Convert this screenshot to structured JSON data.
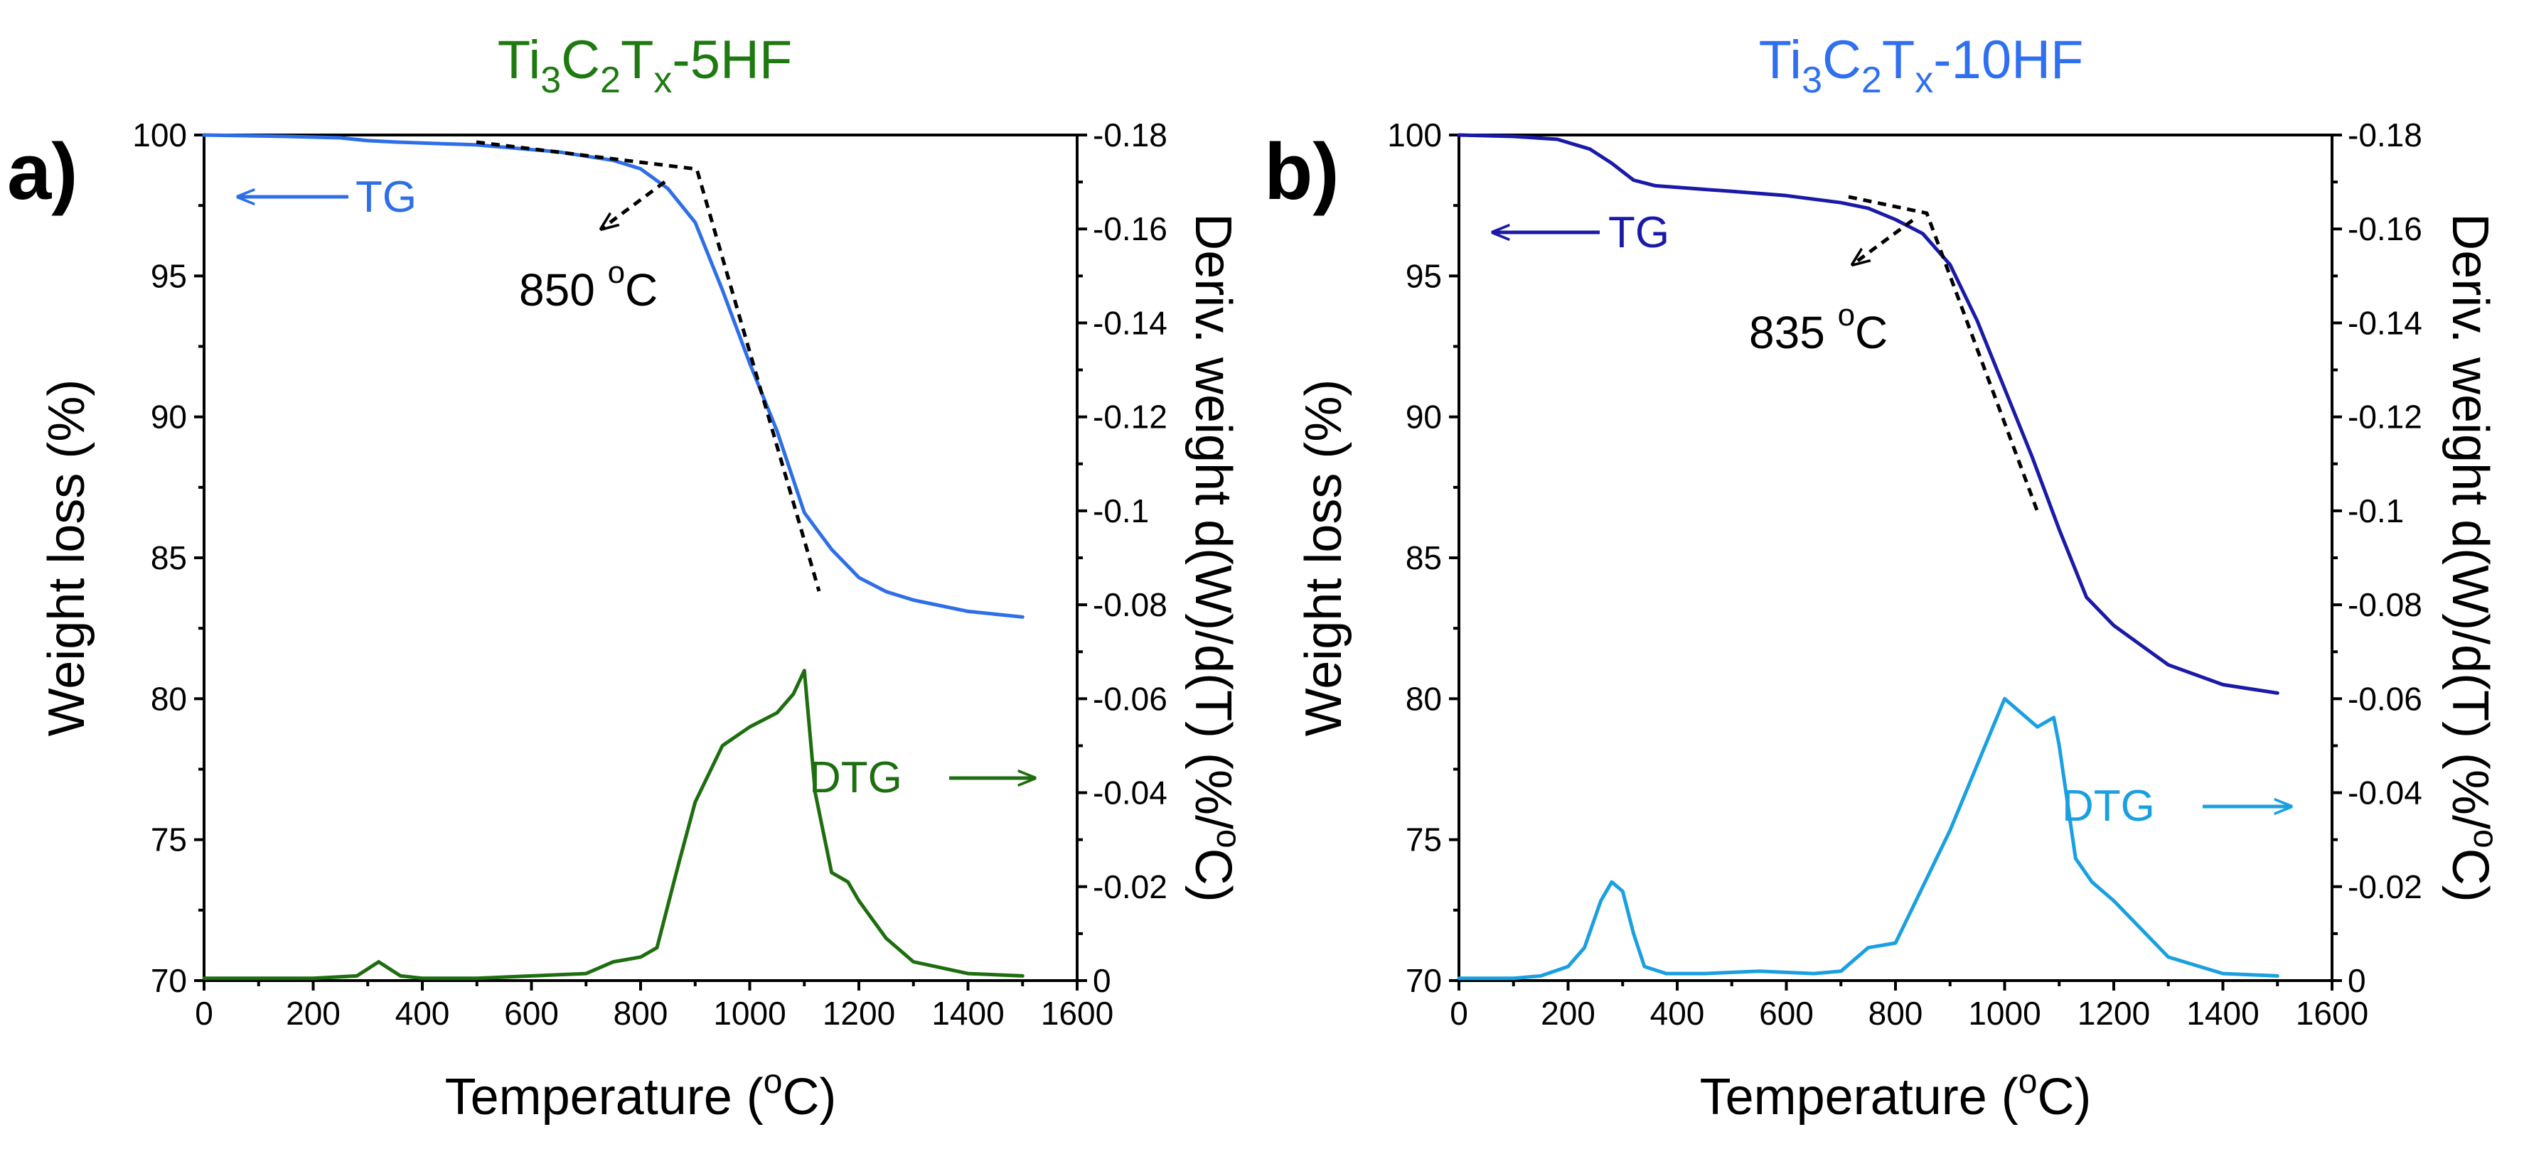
{
  "figure": {
    "x_axis_title": "Temperature (°C)",
    "x_axis_title_parts": [
      "Temperature (",
      "o",
      "C)"
    ],
    "left_axis_title": "Weight loss (%)",
    "right_axis_title": "Deriv. weight d(W)/d(T)  (%/°C)",
    "right_axis_title_parts": [
      "Deriv. weight d(W)/d(T)  (%/",
      "o",
      "C)"
    ]
  },
  "colors": {
    "panel_a_title": "#1e7a10",
    "panel_a_tg": "#2e6fe8",
    "panel_a_dtg": "#1e6e10",
    "panel_b_title": "#2f6ff0",
    "panel_b_tg": "#1a1aa8",
    "panel_b_dtg": "#1aa0e0",
    "axes": "#000000"
  },
  "chart_data": [
    {
      "type": "line",
      "panel_label": "a)",
      "title": "Ti3C2Tx-5HF",
      "title_parts": [
        "Ti",
        "3",
        "C",
        "2",
        "T",
        "x",
        "-5HF"
      ],
      "xlabel": "Temperature (°C)",
      "ylabel": "Weight loss (%)",
      "y2label": "Deriv. weight d(W)/d(T)  (%/°C)",
      "xlim": [
        0,
        1600
      ],
      "ylim": [
        70,
        100
      ],
      "y2lim": [
        0,
        -0.18
      ],
      "xticks": [
        0,
        200,
        400,
        600,
        800,
        1000,
        1200,
        1400,
        1600
      ],
      "yticks": [
        70,
        75,
        80,
        85,
        90,
        95,
        100
      ],
      "y2ticks": [
        0,
        -0.02,
        -0.04,
        -0.06,
        -0.08,
        -0.1,
        -0.12,
        -0.14,
        -0.16,
        -0.18
      ],
      "xtick_labels": [
        "0",
        "200",
        "400",
        "600",
        "800",
        "1000",
        "1200",
        "1400",
        "1600"
      ],
      "ytick_labels": [
        "70",
        "75",
        "80",
        "85",
        "90",
        "95",
        "100"
      ],
      "y2tick_labels": [
        "0",
        "-0.02",
        "-0.04",
        "-0.06",
        "-0.08",
        "-0.1",
        "-0.12",
        "-0.14",
        "-0.16",
        "-0.18"
      ],
      "series": [
        {
          "name": "TG",
          "axis": "left",
          "x": [
            0,
            150,
            250,
            300,
            350,
            500,
            650,
            750,
            800,
            850,
            900,
            950,
            1000,
            1050,
            1100,
            1150,
            1200,
            1250,
            1300,
            1400,
            1500
          ],
          "values": [
            100,
            99.95,
            99.9,
            99.8,
            99.75,
            99.65,
            99.4,
            99.1,
            98.8,
            98.1,
            96.9,
            94.5,
            91.9,
            89.5,
            86.6,
            85.3,
            84.3,
            83.8,
            83.5,
            83.1,
            82.9
          ]
        },
        {
          "name": "DTG",
          "axis": "right",
          "x": [
            0,
            100,
            200,
            280,
            320,
            360,
            400,
            500,
            600,
            700,
            750,
            800,
            830,
            870,
            900,
            950,
            1000,
            1050,
            1080,
            1100,
            1120,
            1150,
            1180,
            1200,
            1250,
            1300,
            1400,
            1500
          ],
          "values": [
            -0.0005,
            -0.0005,
            -0.0005,
            -0.001,
            -0.004,
            -0.001,
            -0.0005,
            -0.0005,
            -0.001,
            -0.0015,
            -0.004,
            -0.005,
            -0.007,
            -0.025,
            -0.038,
            -0.05,
            -0.054,
            -0.057,
            -0.061,
            -0.066,
            -0.04,
            -0.023,
            -0.021,
            -0.017,
            -0.009,
            -0.004,
            -0.0015,
            -0.001
          ]
        }
      ],
      "annotations": {
        "onset": "850 °C",
        "onset_parts": [
          "850 ",
          "o",
          "C"
        ],
        "tg_label": "TG",
        "dtg_label": "DTG"
      }
    },
    {
      "type": "line",
      "panel_label": "b)",
      "title": "Ti3C2Tx-10HF",
      "title_parts": [
        "Ti",
        "3",
        "C",
        "2",
        "T",
        "x",
        "-10HF"
      ],
      "xlabel": "Temperature (°C)",
      "ylabel": "Weight loss (%)",
      "y2label": "Deriv. weight d(W)/d(T)  (%/°C)",
      "xlim": [
        0,
        1600
      ],
      "ylim": [
        70,
        100
      ],
      "y2lim": [
        0,
        -0.18
      ],
      "xticks": [
        0,
        200,
        400,
        600,
        800,
        1000,
        1200,
        1400,
        1600
      ],
      "yticks": [
        70,
        75,
        80,
        85,
        90,
        95,
        100
      ],
      "y2ticks": [
        0,
        -0.02,
        -0.04,
        -0.06,
        -0.08,
        -0.1,
        -0.12,
        -0.14,
        -0.16,
        -0.18
      ],
      "xtick_labels": [
        "0",
        "200",
        "400",
        "600",
        "800",
        "1000",
        "1200",
        "1400",
        "1600"
      ],
      "ytick_labels": [
        "70",
        "75",
        "80",
        "85",
        "90",
        "95",
        "100"
      ],
      "y2tick_labels": [
        "0",
        "-0.02",
        "-0.04",
        "-0.06",
        "-0.08",
        "-0.1",
        "-0.12",
        "-0.14",
        "-0.16",
        "-0.18"
      ],
      "series": [
        {
          "name": "TG",
          "axis": "left",
          "x": [
            0,
            100,
            180,
            240,
            280,
            320,
            360,
            500,
            600,
            700,
            750,
            800,
            850,
            900,
            950,
            1000,
            1050,
            1100,
            1150,
            1200,
            1250,
            1300,
            1400,
            1500
          ],
          "values": [
            100,
            99.95,
            99.85,
            99.5,
            99.0,
            98.4,
            98.2,
            98.0,
            97.85,
            97.6,
            97.4,
            97.0,
            96.5,
            95.4,
            93.4,
            91.0,
            88.6,
            86.0,
            83.6,
            82.6,
            81.9,
            81.2,
            80.5,
            80.2
          ]
        },
        {
          "name": "DTG",
          "axis": "right",
          "x": [
            0,
            100,
            150,
            200,
            230,
            260,
            280,
            300,
            320,
            340,
            380,
            450,
            550,
            650,
            700,
            750,
            800,
            850,
            900,
            950,
            1000,
            1030,
            1060,
            1090,
            1100,
            1130,
            1160,
            1200,
            1250,
            1300,
            1400,
            1500
          ],
          "values": [
            -0.0005,
            -0.0005,
            -0.001,
            -0.003,
            -0.007,
            -0.017,
            -0.021,
            -0.019,
            -0.01,
            -0.003,
            -0.0015,
            -0.0015,
            -0.002,
            -0.0015,
            -0.002,
            -0.007,
            -0.008,
            -0.02,
            -0.032,
            -0.046,
            -0.06,
            -0.057,
            -0.054,
            -0.056,
            -0.05,
            -0.026,
            -0.021,
            -0.017,
            -0.011,
            -0.005,
            -0.0015,
            -0.001
          ]
        }
      ],
      "annotations": {
        "onset": "835 °C",
        "onset_parts": [
          "835 ",
          "o",
          "C"
        ],
        "tg_label": "TG",
        "dtg_label": "DTG"
      }
    }
  ]
}
